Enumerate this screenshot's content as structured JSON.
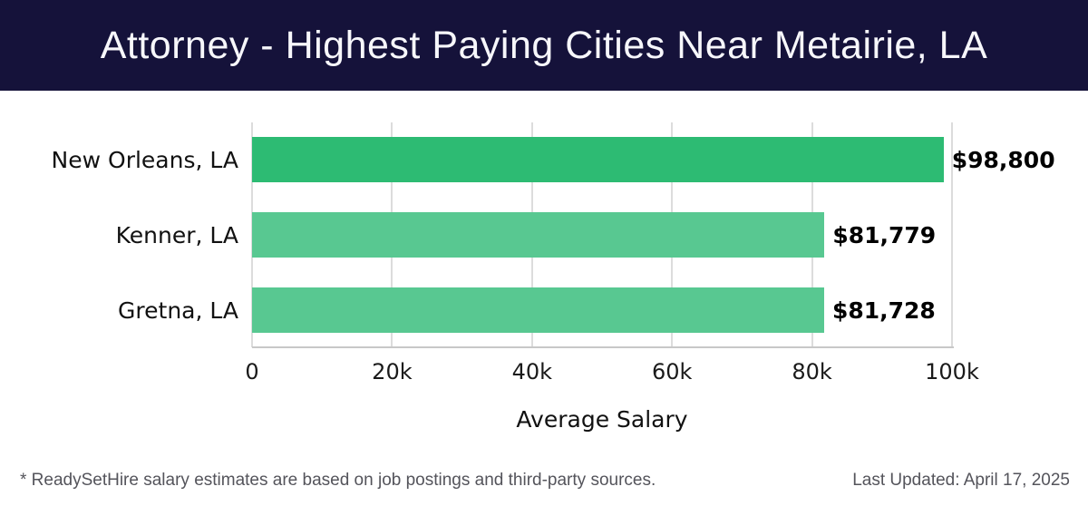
{
  "header": {
    "title": "Attorney - Highest Paying Cities Near Metairie, LA",
    "background_color": "#15123a",
    "text_color": "#f7f7fb"
  },
  "chart_data": {
    "type": "bar",
    "orientation": "horizontal",
    "title": "Attorney - Highest Paying Cities Near Metairie, LA",
    "categories": [
      "New Orleans, LA",
      "Kenner, LA",
      "Gretna, LA"
    ],
    "values": [
      98800,
      81779,
      81728
    ],
    "value_labels": [
      "$98,800",
      "$81,779",
      "$81,728"
    ],
    "bar_colors": [
      "#2dbb73",
      "#58c891",
      "#58c891"
    ],
    "xlabel": "Average Salary",
    "ylabel": "",
    "xlim": [
      0,
      100000
    ],
    "x_ticks": [
      0,
      20000,
      40000,
      60000,
      80000,
      100000
    ],
    "x_tick_labels": [
      "0",
      "20k",
      "40k",
      "60k",
      "80k",
      "100k"
    ],
    "grid": true,
    "gridline_color": "#dcdcdc",
    "axis_color": "#c8c8c8",
    "legend": false
  },
  "footer": {
    "note": "* ReadySetHire salary estimates are based on job postings and third-party sources.",
    "last_updated": "Last Updated: April 17, 2025"
  }
}
